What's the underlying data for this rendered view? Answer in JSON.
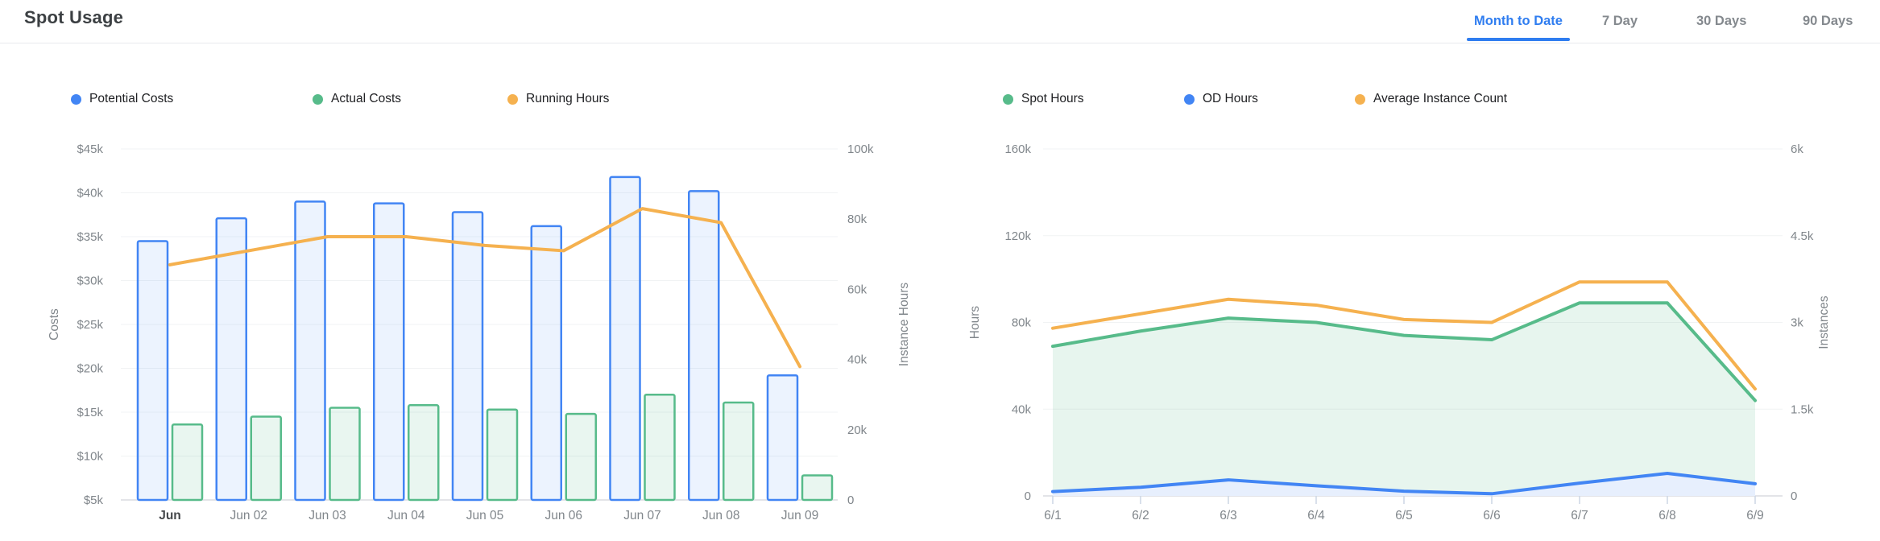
{
  "header": {
    "title": "Spot Usage",
    "tabs": [
      {
        "label": "Month to Date",
        "active": true
      },
      {
        "label": "7 Day",
        "active": false
      },
      {
        "label": "30 Days",
        "active": false
      },
      {
        "label": "90 Days",
        "active": false
      }
    ],
    "active_tab_color": "#2f7df0"
  },
  "colors": {
    "blue": "#4285f4",
    "green": "#57bb8a",
    "orange": "#f5b14f",
    "axis_text": "#80868b",
    "gridline": "#f1f3f4",
    "baseline": "#dadce0"
  },
  "chart_data": [
    {
      "type": "bar",
      "name": "costs-and-running-hours",
      "categories": [
        "Jun",
        "Jun 02",
        "Jun 03",
        "Jun 04",
        "Jun 05",
        "Jun 06",
        "Jun 07",
        "Jun 08",
        "Jun 09"
      ],
      "series": [
        {
          "name": "Potential Costs",
          "type": "bar",
          "axis": "left",
          "color": "#4285f4",
          "fill": "rgba(66,133,244,0.10)",
          "unit": "k USD",
          "values": [
            34.5,
            37.1,
            39.0,
            38.8,
            37.8,
            36.2,
            41.8,
            40.2,
            19.2
          ]
        },
        {
          "name": "Actual Costs",
          "type": "bar",
          "axis": "left",
          "color": "#57bb8a",
          "fill": "rgba(87,187,138,0.13)",
          "unit": "k USD",
          "values": [
            13.6,
            14.5,
            15.5,
            15.8,
            15.3,
            14.8,
            17.0,
            16.1,
            7.8
          ]
        },
        {
          "name": "Running Hours",
          "type": "line",
          "axis": "right",
          "color": "#f5b14f",
          "unit": "k instance hours",
          "values": [
            67,
            71,
            75,
            75,
            72.5,
            71,
            83,
            79,
            38
          ]
        }
      ],
      "left_axis": {
        "label": "Costs",
        "min": 5,
        "max": 45,
        "ticks": [
          {
            "value": 45,
            "label": "$45k"
          },
          {
            "value": 40,
            "label": "$40k"
          },
          {
            "value": 35,
            "label": "$35k"
          },
          {
            "value": 30,
            "label": "$30k"
          },
          {
            "value": 25,
            "label": "$25k"
          },
          {
            "value": 20,
            "label": "$20k"
          },
          {
            "value": 15,
            "label": "$15k"
          },
          {
            "value": 10,
            "label": "$10k"
          },
          {
            "value": 5,
            "label": "$5k"
          }
        ]
      },
      "right_axis": {
        "label": "Instance Hours",
        "min": 0,
        "max": 100,
        "ticks": [
          {
            "value": 100,
            "label": "100k"
          },
          {
            "value": 80,
            "label": "80k"
          },
          {
            "value": 60,
            "label": "60k"
          },
          {
            "value": 40,
            "label": "40k"
          },
          {
            "value": 20,
            "label": "20k"
          },
          {
            "value": 0,
            "label": "0"
          }
        ]
      },
      "legend_position": "top"
    },
    {
      "type": "area",
      "name": "hours-and-instance-count",
      "categories": [
        "6/1",
        "6/2",
        "6/3",
        "6/4",
        "6/5",
        "6/6",
        "6/7",
        "6/8",
        "6/9"
      ],
      "series": [
        {
          "name": "Spot Hours",
          "type": "area-line",
          "axis": "left",
          "color": "#57bb8a",
          "fill": "rgba(87,187,138,0.14)",
          "unit": "k hours",
          "values": [
            69,
            76,
            82,
            80,
            74,
            72,
            89,
            89,
            44
          ]
        },
        {
          "name": "OD Hours",
          "type": "area-line",
          "axis": "left",
          "color": "#4285f4",
          "fill": "#e7effd",
          "unit": "k hours",
          "values": [
            2,
            4,
            7.4,
            4.7,
            2.2,
            1,
            5.9,
            10.4,
            5.6
          ]
        },
        {
          "name": "Average Instance Count",
          "type": "line",
          "axis": "right",
          "color": "#f5b14f",
          "unit": "k instances",
          "values": [
            2.9,
            3.15,
            3.4,
            3.3,
            3.05,
            3.0,
            3.7,
            3.7,
            1.85
          ]
        }
      ],
      "left_axis": {
        "label": "Hours",
        "min": 0,
        "max": 160,
        "ticks": [
          {
            "value": 160,
            "label": "160k"
          },
          {
            "value": 120,
            "label": "120k"
          },
          {
            "value": 80,
            "label": "80k"
          },
          {
            "value": 40,
            "label": "40k"
          },
          {
            "value": 0,
            "label": "0"
          }
        ]
      },
      "right_axis": {
        "label": "Instances",
        "min": 0,
        "max": 6,
        "ticks": [
          {
            "value": 6,
            "label": "6k"
          },
          {
            "value": 4.5,
            "label": "4.5k"
          },
          {
            "value": 3,
            "label": "3k"
          },
          {
            "value": 1.5,
            "label": "1.5k"
          },
          {
            "value": 0,
            "label": "0"
          }
        ]
      },
      "legend_position": "top"
    }
  ]
}
